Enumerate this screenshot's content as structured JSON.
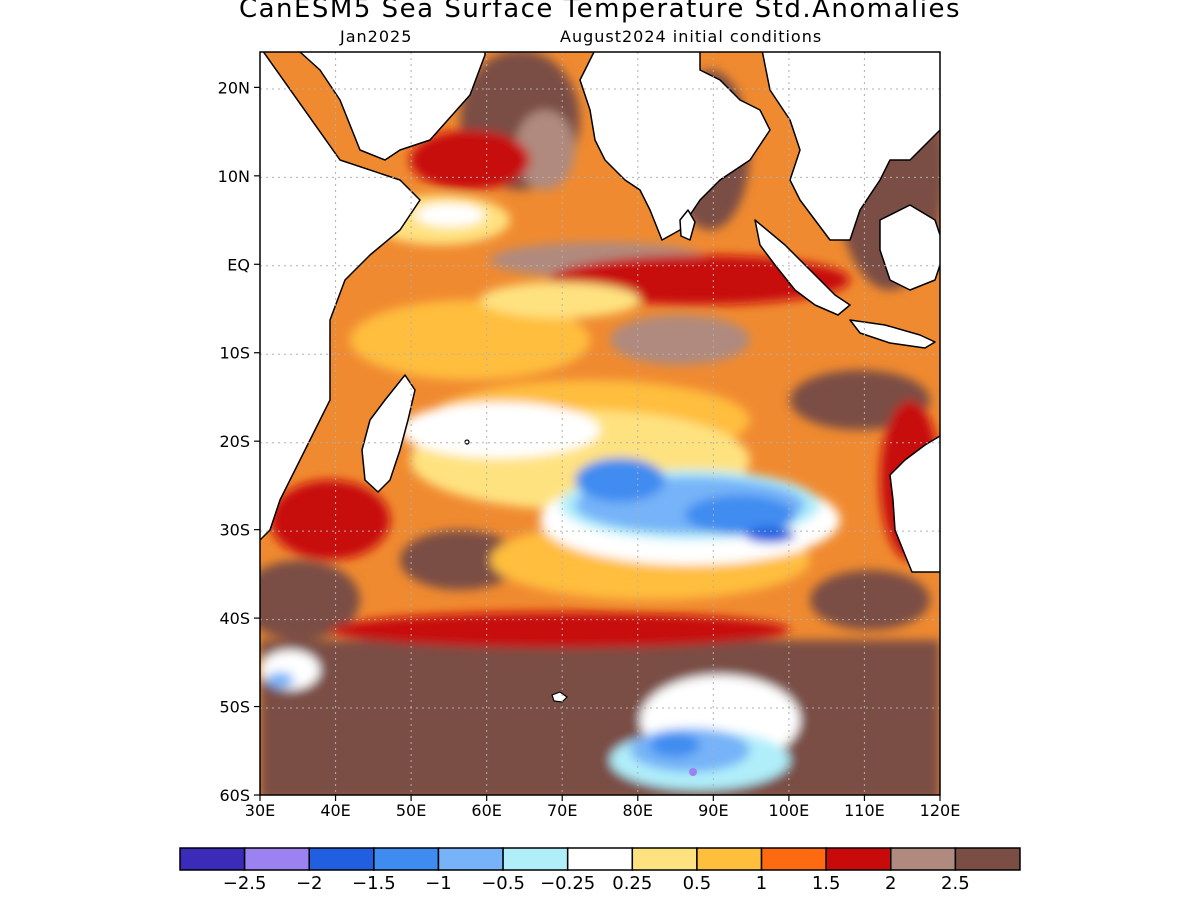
{
  "title": "CanESM5 Sea Surface Temperature Std.Anomalies",
  "subtitle_left": "Jan2025",
  "subtitle_right": "August2024 initial conditions",
  "colors": {
    "ocean_background": "#f08a30",
    "land": "#ffffff",
    "coastline": "#000000",
    "grid": "#b0b0b0"
  },
  "map": {
    "lon_range": [
      30,
      120
    ],
    "lat_range": [
      -60,
      24
    ],
    "x_ticks": [
      "30E",
      "40E",
      "50E",
      "60E",
      "70E",
      "80E",
      "90E",
      "100E",
      "110E",
      "120E"
    ],
    "y_ticks": [
      "20N",
      "10N",
      "EQ",
      "10S",
      "20S",
      "30S",
      "40S",
      "50S",
      "60S"
    ]
  },
  "colorbar": {
    "colors": [
      "#3a2bb8",
      "#9a82f0",
      "#1f5fe0",
      "#3f8cf0",
      "#76b3f8",
      "#b0eefa",
      "#ffffff",
      "#ffe280",
      "#ffbe3c",
      "#fe6a10",
      "#c80a0a",
      "#b08a7e",
      "#7a4e44"
    ],
    "labels": [
      "−2.5",
      "−2",
      "−1.5",
      "−1",
      "−0.5",
      "−0.25",
      "0.25",
      "0.5",
      "1",
      "1.5",
      "2",
      "2.5"
    ]
  }
}
